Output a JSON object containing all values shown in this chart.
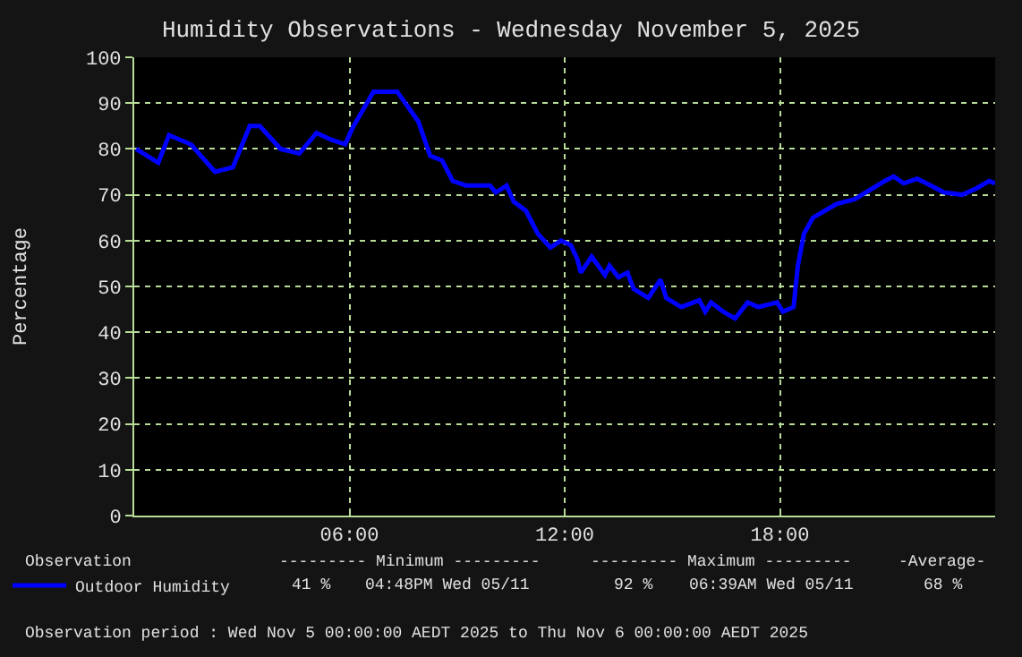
{
  "chart_data": {
    "type": "line",
    "title": "Humidity Observations - Wednesday November 5, 2025",
    "ylabel": "Percentage",
    "xlim": [
      0,
      24
    ],
    "xticks": [
      {
        "value": 0,
        "label": null
      },
      {
        "value": 6,
        "label": "06:00"
      },
      {
        "value": 12,
        "label": "12:00"
      },
      {
        "value": 18,
        "label": "18:00"
      },
      {
        "value": 24,
        "label": null
      }
    ],
    "ylim": [
      0,
      100
    ],
    "yticks": [
      0,
      10,
      20,
      30,
      40,
      50,
      60,
      70,
      80,
      90,
      100
    ],
    "grid": true,
    "legend": "bottom left",
    "marker": "none",
    "line_style": "solid",
    "series": [
      {
        "name": "Outdoor Humidity",
        "color": "#0000ff",
        "x": [
          0.05,
          0.67,
          0.97,
          1.58,
          2.25,
          2.75,
          3.22,
          3.5,
          4.08,
          4.6,
          5.08,
          5.5,
          5.88,
          6.08,
          6.67,
          7.33,
          7.92,
          8.25,
          8.58,
          8.88,
          9.25,
          9.92,
          10.08,
          10.38,
          10.58,
          10.92,
          11.25,
          11.6,
          11.9,
          12.17,
          12.35,
          12.45,
          12.75,
          13.12,
          13.25,
          13.5,
          13.75,
          13.92,
          14.33,
          14.67,
          14.83,
          15.25,
          15.75,
          15.92,
          16.08,
          16.42,
          16.75,
          17.1,
          17.4,
          17.92,
          18.08,
          18.38,
          18.5,
          18.67,
          18.92,
          19.25,
          19.58,
          20.08,
          20.5,
          20.92,
          21.17,
          21.45,
          21.83,
          22.08,
          22.58,
          23.08,
          23.5,
          23.83,
          24
        ],
        "values": [
          80,
          77,
          83,
          81,
          75,
          76,
          85,
          85,
          80,
          79,
          83.5,
          82,
          81,
          84.5,
          92.5,
          92.5,
          86,
          78.5,
          77.5,
          73,
          72,
          72,
          70.5,
          72,
          68.5,
          66.5,
          61.5,
          58.5,
          60,
          59,
          56,
          53,
          56.5,
          52.5,
          54.5,
          52,
          53,
          49.5,
          47.5,
          51.5,
          47.5,
          45.5,
          47,
          44.5,
          46.5,
          44.5,
          43,
          46.5,
          45.5,
          46.5,
          44.5,
          45.5,
          54.5,
          61.5,
          65,
          66.5,
          68,
          69,
          71,
          73,
          74,
          72.5,
          73.5,
          72.5,
          70.5,
          70,
          71.5,
          73,
          72.5
        ]
      }
    ],
    "annotations": [
      "Observation",
      "--------- Minimum ---------",
      "--------- Maximum ---------",
      "-Average-",
      "41 %",
      "04:48PM Wed 05/11",
      "92 %",
      "06:39AM Wed 05/11",
      "68 %",
      "Observation period : Wed Nov 5 00:00:00 AEDT 2025 to Thu Nov 6 00:00:00 AEDT 2025"
    ]
  }
}
